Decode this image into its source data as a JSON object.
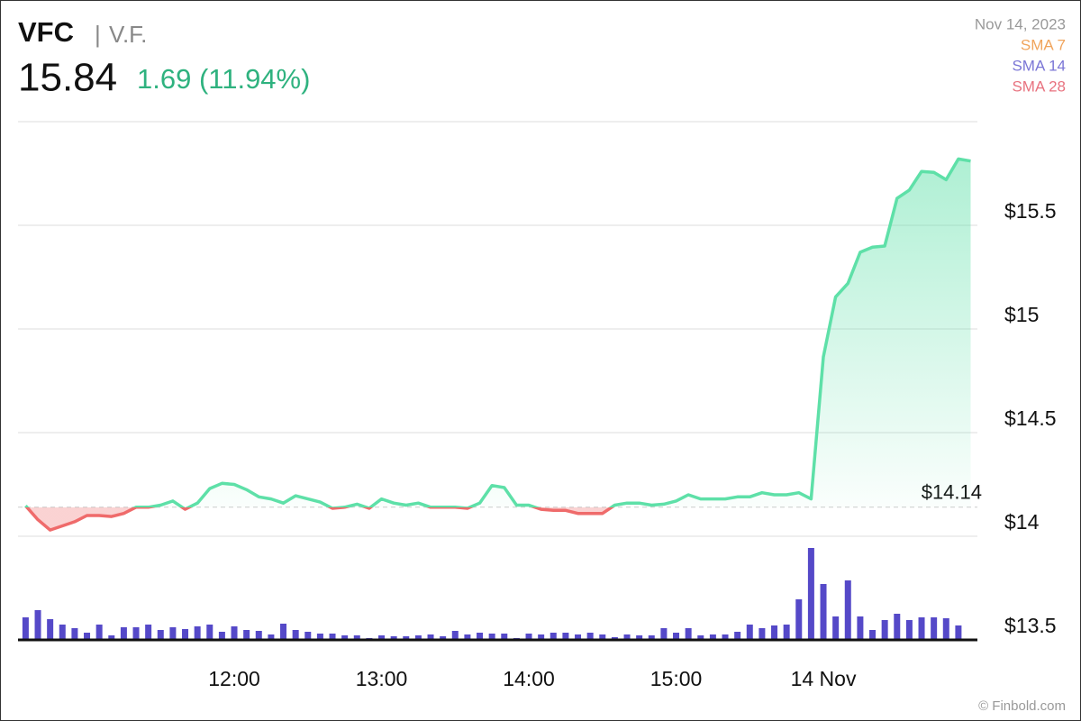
{
  "chart_data": {
    "type": "line",
    "ticker": "VFC",
    "name": "V.F.",
    "price": "15.84",
    "change": "1.69 (11.94%)",
    "date": "Nov 14, 2023",
    "legend": [
      {
        "name": "SMA 7",
        "color": "#f0a45c"
      },
      {
        "name": "SMA 14",
        "color": "#7b76d6"
      },
      {
        "name": "SMA 28",
        "color": "#e8727f"
      }
    ],
    "up_color": "#5ee0a8",
    "down_color": "#ef6b6b",
    "change_color": "#2fb27f",
    "reference": {
      "value": 14.14,
      "label": "$14.14"
    },
    "categories": [
      null,
      null,
      null,
      null,
      null,
      null,
      null,
      null,
      null,
      null,
      null,
      null,
      null,
      null,
      null,
      null,
      null,
      "12:00",
      null,
      null,
      null,
      null,
      null,
      null,
      null,
      null,
      null,
      null,
      null,
      "13:00",
      null,
      null,
      null,
      null,
      null,
      null,
      null,
      null,
      null,
      null,
      null,
      "14:00",
      null,
      null,
      null,
      null,
      null,
      null,
      null,
      null,
      null,
      null,
      null,
      "15:00",
      null,
      null,
      null,
      null,
      null,
      null,
      null,
      null,
      null,
      null,
      null,
      "14 Nov",
      null,
      null,
      null,
      null,
      null,
      null,
      null,
      null,
      null,
      null,
      null,
      null
    ],
    "values": [
      14.147,
      14.08,
      14.03,
      14.05,
      14.07,
      14.1,
      14.1,
      14.095,
      14.11,
      14.14,
      14.14,
      14.15,
      14.17,
      14.13,
      14.16,
      14.23,
      14.255,
      14.25,
      14.225,
      14.19,
      14.18,
      14.16,
      14.195,
      14.18,
      14.165,
      14.135,
      14.14,
      14.155,
      14.135,
      14.18,
      14.16,
      14.15,
      14.16,
      14.14,
      14.14,
      14.14,
      14.135,
      14.16,
      14.245,
      14.235,
      14.15,
      14.15,
      14.13,
      14.125,
      14.125,
      14.11,
      14.11,
      14.11,
      14.15,
      14.16,
      14.16,
      14.15,
      14.155,
      14.17,
      14.2,
      14.18,
      14.18,
      14.18,
      14.19,
      14.19,
      14.21,
      14.2,
      14.2,
      14.21,
      14.18,
      14.865,
      15.155,
      15.22,
      15.37,
      15.395,
      15.4,
      15.63,
      15.67,
      15.76,
      15.755,
      15.72,
      15.82,
      15.81
    ],
    "volume_values": [
      25,
      33,
      23,
      17,
      13,
      8,
      17,
      5,
      14,
      14,
      17,
      11,
      14,
      12,
      15,
      17,
      9,
      15,
      11,
      10,
      6,
      18,
      11,
      9,
      7,
      7,
      5,
      5,
      2,
      5,
      4,
      4,
      5,
      6,
      4,
      10,
      6,
      8,
      7,
      7,
      2,
      7,
      6,
      8,
      8,
      6,
      8,
      6,
      3,
      6,
      5,
      5,
      13,
      8,
      13,
      5,
      6,
      6,
      9,
      17,
      13,
      16,
      17,
      45,
      102,
      62,
      26,
      66,
      26,
      11,
      22,
      29,
      22,
      25,
      25,
      24,
      16,
      null
    ],
    "volume_color": "#5549c8",
    "y2lim": [
      0,
      575
    ],
    "ylim": [
      13.5,
      16
    ],
    "yticks": [
      {
        "value": 13.5,
        "label": "$13.5"
      },
      {
        "value": 14,
        "label": "$14"
      },
      {
        "value": 14.5,
        "label": "$14.5"
      },
      {
        "value": 15,
        "label": "$15"
      },
      {
        "value": 15.5,
        "label": "$15.5"
      }
    ],
    "grid": true,
    "watermark": "© Finbold.com"
  }
}
